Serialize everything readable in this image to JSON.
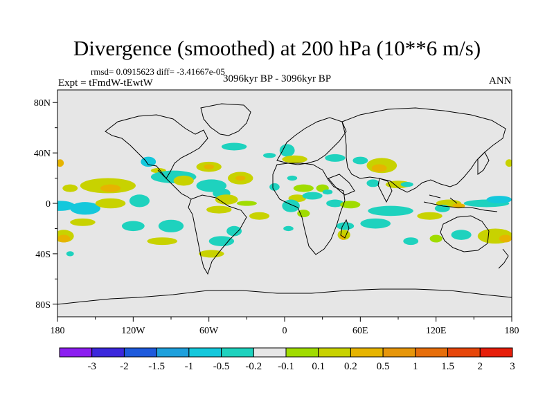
{
  "chart_data": {
    "type": "heatmap",
    "title": "Divergence (smoothed) at 200 hPa (10**6 m/s)",
    "rmsd_label": "rmsd= 0.0915623 diff= -3.41667e-05",
    "experiment_label": "Expt = tFmdW-tEwtW",
    "period_label": "3096kyr BP - 3096kyr BP",
    "season_label": "ANN",
    "lon_range": [
      -180,
      180
    ],
    "lat_range": [
      -90,
      90
    ],
    "x_ticks": [
      {
        "value": -180,
        "label": "180"
      },
      {
        "value": -120,
        "label": "120W"
      },
      {
        "value": -60,
        "label": "60W"
      },
      {
        "value": 0,
        "label": "0"
      },
      {
        "value": 60,
        "label": "60E"
      },
      {
        "value": 120,
        "label": "120E"
      },
      {
        "value": 180,
        "label": "180"
      }
    ],
    "y_ticks": [
      {
        "value": 80,
        "label": "80N"
      },
      {
        "value": 40,
        "label": "40N"
      },
      {
        "value": 0,
        "label": "0"
      },
      {
        "value": -40,
        "label": "40S"
      },
      {
        "value": -80,
        "label": "80S"
      }
    ],
    "colorbar": {
      "levels": [
        "-3",
        "-2",
        "-1.5",
        "-1",
        "-0.5",
        "-0.2",
        "-0.1",
        "0.1",
        "0.2",
        "0.5",
        "1",
        "1.5",
        "2",
        "3"
      ],
      "colors": [
        "#8c1ef0",
        "#3c28dc",
        "#1e5adc",
        "#1ea0dc",
        "#14c8dc",
        "#1ed2be",
        "#e6e6e6",
        "#a0dc00",
        "#c8d200",
        "#e6b400",
        "#e6960a",
        "#e66e0a",
        "#e6460a",
        "#e61e0a"
      ]
    },
    "regions": [
      {
        "lon": -178,
        "lat": 32,
        "rlon": 3,
        "rlat": 3,
        "level": 9
      },
      {
        "lon": -178,
        "lat": -2,
        "rlon": 12,
        "rlat": 4,
        "level": 4
      },
      {
        "lon": -170,
        "lat": 12,
        "rlon": 6,
        "rlat": 3,
        "level": 8
      },
      {
        "lon": -158,
        "lat": -4,
        "rlon": 12,
        "rlat": 5,
        "level": 4
      },
      {
        "lon": -140,
        "lat": 14,
        "rlon": 22,
        "rlat": 6,
        "level": 8
      },
      {
        "lon": -138,
        "lat": 12,
        "rlon": 8,
        "rlat": 3,
        "level": 9
      },
      {
        "lon": -138,
        "lat": 0,
        "rlon": 12,
        "rlat": 4,
        "level": 8
      },
      {
        "lon": -160,
        "lat": -15,
        "rlon": 10,
        "rlat": 3,
        "level": 8
      },
      {
        "lon": -175,
        "lat": -26,
        "rlon": 8,
        "rlat": 5,
        "level": 8
      },
      {
        "lon": -175,
        "lat": -28,
        "rlon": 5,
        "rlat": 3,
        "level": 9
      },
      {
        "lon": -170,
        "lat": -40,
        "rlon": 3,
        "rlat": 2,
        "level": 5
      },
      {
        "lon": -120,
        "lat": -18,
        "rlon": 9,
        "rlat": 4,
        "level": 5
      },
      {
        "lon": -115,
        "lat": 2,
        "rlon": 8,
        "rlat": 5,
        "level": 5
      },
      {
        "lon": -90,
        "lat": -18,
        "rlon": 10,
        "rlat": 5,
        "level": 5
      },
      {
        "lon": -97,
        "lat": -30,
        "rlon": 12,
        "rlat": 3,
        "level": 8
      },
      {
        "lon": -108,
        "lat": 33,
        "rlon": 6,
        "rlat": 4,
        "level": 4
      },
      {
        "lon": -100,
        "lat": 26,
        "rlon": 6,
        "rlat": 2,
        "level": 8
      },
      {
        "lon": -88,
        "lat": 21,
        "rlon": 18,
        "rlat": 5,
        "level": 5
      },
      {
        "lon": -80,
        "lat": 18,
        "rlon": 8,
        "rlat": 4,
        "level": 8
      },
      {
        "lon": -60,
        "lat": 29,
        "rlon": 10,
        "rlat": 4,
        "level": 8
      },
      {
        "lon": -60,
        "lat": 29,
        "rlon": 4,
        "rlat": 2,
        "level": 9
      },
      {
        "lon": -40,
        "lat": 45,
        "rlon": 10,
        "rlat": 3,
        "level": 5
      },
      {
        "lon": -58,
        "lat": 14,
        "rlon": 12,
        "rlat": 5,
        "level": 5
      },
      {
        "lon": -50,
        "lat": 8,
        "rlon": 7,
        "rlat": 4,
        "level": 5
      },
      {
        "lon": -46,
        "lat": 3,
        "rlon": 9,
        "rlat": 4,
        "level": 8
      },
      {
        "lon": -35,
        "lat": 20,
        "rlon": 10,
        "rlat": 5,
        "level": 8
      },
      {
        "lon": -35,
        "lat": 20,
        "rlon": 4,
        "rlat": 2,
        "level": 9
      },
      {
        "lon": -30,
        "lat": 0,
        "rlon": 8,
        "rlat": 2,
        "level": 7
      },
      {
        "lon": -52,
        "lat": -5,
        "rlon": 10,
        "rlat": 3,
        "level": 8
      },
      {
        "lon": -40,
        "lat": -22,
        "rlon": 6,
        "rlat": 4,
        "level": 5
      },
      {
        "lon": -50,
        "lat": -30,
        "rlon": 10,
        "rlat": 4,
        "level": 5
      },
      {
        "lon": -58,
        "lat": -40,
        "rlon": 10,
        "rlat": 3,
        "level": 8
      },
      {
        "lon": -20,
        "lat": -10,
        "rlon": 8,
        "rlat": 3,
        "level": 8
      },
      {
        "lon": -12,
        "lat": 38,
        "rlon": 5,
        "rlat": 2,
        "level": 5
      },
      {
        "lon": 2,
        "lat": 42,
        "rlon": 6,
        "rlat": 5,
        "level": 5
      },
      {
        "lon": 8,
        "lat": 35,
        "rlon": 10,
        "rlat": 3,
        "level": 8
      },
      {
        "lon": 6,
        "lat": 20,
        "rlon": 4,
        "rlat": 2,
        "level": 5
      },
      {
        "lon": -8,
        "lat": 13,
        "rlon": 4,
        "rlat": 3,
        "level": 5
      },
      {
        "lon": 15,
        "lat": 12,
        "rlon": 8,
        "rlat": 3,
        "level": 7
      },
      {
        "lon": 10,
        "lat": 4,
        "rlon": 7,
        "rlat": 3,
        "level": 8
      },
      {
        "lon": 5,
        "lat": -2,
        "rlon": 7,
        "rlat": 5,
        "level": 5
      },
      {
        "lon": 3,
        "lat": -20,
        "rlon": 4,
        "rlat": 2,
        "level": 5
      },
      {
        "lon": 15,
        "lat": -8,
        "rlon": 5,
        "rlat": 3,
        "level": 7
      },
      {
        "lon": 40,
        "lat": 36,
        "rlon": 8,
        "rlat": 3,
        "level": 5
      },
      {
        "lon": 60,
        "lat": 34,
        "rlon": 6,
        "rlat": 3,
        "level": 5
      },
      {
        "lon": 77,
        "lat": 30,
        "rlon": 12,
        "rlat": 6,
        "level": 8
      },
      {
        "lon": 75,
        "lat": 28,
        "rlon": 6,
        "rlat": 3,
        "level": 9
      },
      {
        "lon": 30,
        "lat": 12,
        "rlon": 5,
        "rlat": 3,
        "level": 7
      },
      {
        "lon": 22,
        "lat": 6,
        "rlon": 8,
        "rlat": 3,
        "level": 5
      },
      {
        "lon": 34,
        "lat": 9,
        "rlon": 4,
        "rlat": 2,
        "level": 5
      },
      {
        "lon": 40,
        "lat": 0,
        "rlon": 7,
        "rlat": 3,
        "level": 5
      },
      {
        "lon": 52,
        "lat": -1,
        "rlon": 8,
        "rlat": 3,
        "level": 7
      },
      {
        "lon": 70,
        "lat": 16,
        "rlon": 5,
        "rlat": 3,
        "level": 5
      },
      {
        "lon": 90,
        "lat": 15,
        "rlon": 10,
        "rlat": 3,
        "level": 8
      },
      {
        "lon": 97,
        "lat": 15,
        "rlon": 5,
        "rlat": 2,
        "level": 5
      },
      {
        "lon": 84,
        "lat": -6,
        "rlon": 18,
        "rlat": 4,
        "level": 5
      },
      {
        "lon": 72,
        "lat": -16,
        "rlon": 12,
        "rlat": 4,
        "level": 5
      },
      {
        "lon": 48,
        "lat": -18,
        "rlon": 7,
        "rlat": 3,
        "level": 5
      },
      {
        "lon": 47,
        "lat": -25,
        "rlon": 5,
        "rlat": 4,
        "level": 8
      },
      {
        "lon": 46,
        "lat": -27,
        "rlon": 2,
        "rlat": 2,
        "level": 9
      },
      {
        "lon": 100,
        "lat": -30,
        "rlon": 6,
        "rlat": 3,
        "level": 5
      },
      {
        "lon": 115,
        "lat": -10,
        "rlon": 10,
        "rlat": 3,
        "level": 8
      },
      {
        "lon": 130,
        "lat": 0,
        "rlon": 10,
        "rlat": 3,
        "level": 8
      },
      {
        "lon": 138,
        "lat": -2,
        "rlon": 5,
        "rlat": 2,
        "level": 9
      },
      {
        "lon": 125,
        "lat": -4,
        "rlon": 6,
        "rlat": 3,
        "level": 5
      },
      {
        "lon": 160,
        "lat": 0,
        "rlon": 18,
        "rlat": 3,
        "level": 5
      },
      {
        "lon": 140,
        "lat": -25,
        "rlon": 8,
        "rlat": 4,
        "level": 5
      },
      {
        "lon": 120,
        "lat": -28,
        "rlon": 5,
        "rlat": 3,
        "level": 7
      },
      {
        "lon": 167,
        "lat": -26,
        "rlon": 14,
        "rlat": 6,
        "level": 8
      },
      {
        "lon": 175,
        "lat": -28,
        "rlon": 5,
        "rlat": 3,
        "level": 9
      },
      {
        "lon": 170,
        "lat": 3,
        "rlon": 10,
        "rlat": 3,
        "level": 4
      },
      {
        "lon": 178,
        "lat": 32,
        "rlon": 3,
        "rlat": 3,
        "level": 8
      }
    ]
  }
}
